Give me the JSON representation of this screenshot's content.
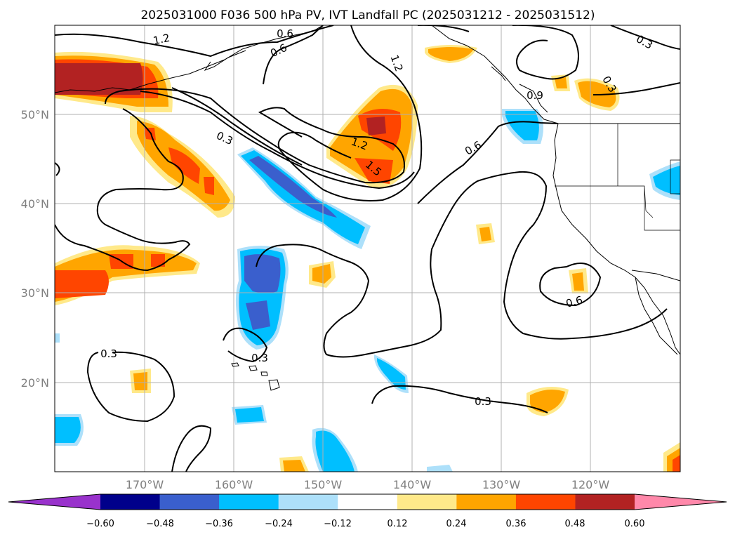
{
  "title": "2025031000 F036 500 hPa PV, IVT Landfall PC (2025031212 - 2025031512)",
  "map": {
    "lon_ticks": [
      "170°W",
      "160°W",
      "150°W",
      "140°W",
      "130°W",
      "120°W"
    ],
    "lat_ticks": [
      "50°N",
      "40°N",
      "30°N",
      "20°N"
    ],
    "contour_labels": [
      "1.2",
      "0.6",
      "0.6",
      "1.2",
      "0.9",
      "0.3",
      "0.3",
      "1.2",
      "1.5",
      "0.6",
      "0.6",
      "0.3",
      "0.3",
      "0.3",
      "0.3"
    ]
  },
  "colorbar": {
    "ticks": [
      "−0.60",
      "−0.48",
      "−0.36",
      "−0.24",
      "−0.12",
      "0.12",
      "0.24",
      "0.36",
      "0.48",
      "0.60"
    ],
    "colors": [
      "#9932CC",
      "#00008B",
      "#3A5FCD",
      "#00BFFF",
      "#ADE0FA",
      "#FFFFFF",
      "#FFE98A",
      "#FFA500",
      "#FF4500",
      "#B22222",
      "#FF88AA"
    ]
  }
}
